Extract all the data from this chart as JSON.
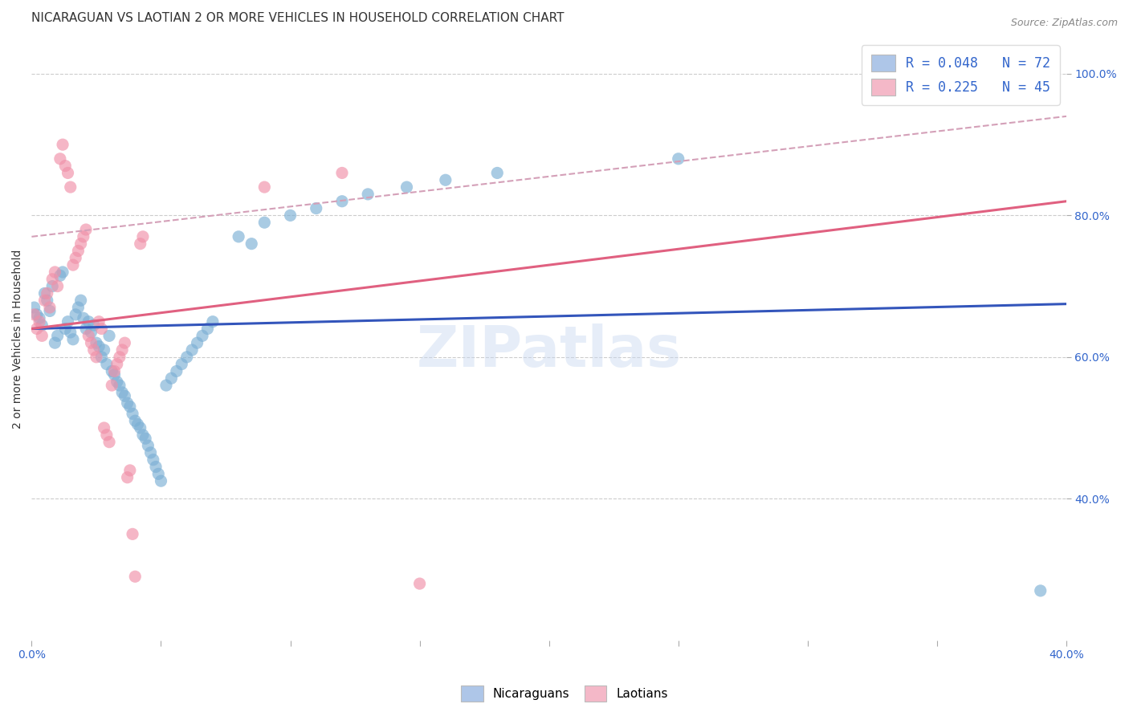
{
  "title": "NICARAGUAN VS LAOTIAN 2 OR MORE VEHICLES IN HOUSEHOLD CORRELATION CHART",
  "source": "Source: ZipAtlas.com",
  "ylabel": "2 or more Vehicles in Household",
  "yticks": [
    "40.0%",
    "60.0%",
    "80.0%",
    "100.0%"
  ],
  "ytick_vals": [
    0.4,
    0.6,
    0.8,
    1.0
  ],
  "legend_entries": [
    {
      "label": "R = 0.048   N = 72",
      "color": "#aec6e8"
    },
    {
      "label": "R = 0.225   N = 45",
      "color": "#f4b8c8"
    }
  ],
  "legend_r_color": "#3366cc",
  "watermark": "ZIPatlas",
  "blue_color": "#7bafd4",
  "pink_color": "#f090a8",
  "blue_line_color": "#3355bb",
  "pink_line_color": "#e06080",
  "pink_dashed_color": "#d4a0b8",
  "nicaraguan_scatter": [
    [
      0.001,
      0.67
    ],
    [
      0.002,
      0.66
    ],
    [
      0.003,
      0.655
    ],
    [
      0.004,
      0.645
    ],
    [
      0.005,
      0.69
    ],
    [
      0.006,
      0.68
    ],
    [
      0.007,
      0.665
    ],
    [
      0.008,
      0.7
    ],
    [
      0.009,
      0.62
    ],
    [
      0.01,
      0.63
    ],
    [
      0.011,
      0.715
    ],
    [
      0.012,
      0.72
    ],
    [
      0.013,
      0.64
    ],
    [
      0.014,
      0.65
    ],
    [
      0.015,
      0.635
    ],
    [
      0.016,
      0.625
    ],
    [
      0.017,
      0.66
    ],
    [
      0.018,
      0.67
    ],
    [
      0.019,
      0.68
    ],
    [
      0.02,
      0.655
    ],
    [
      0.021,
      0.64
    ],
    [
      0.022,
      0.65
    ],
    [
      0.023,
      0.635
    ],
    [
      0.024,
      0.645
    ],
    [
      0.025,
      0.62
    ],
    [
      0.026,
      0.615
    ],
    [
      0.027,
      0.6
    ],
    [
      0.028,
      0.61
    ],
    [
      0.029,
      0.59
    ],
    [
      0.03,
      0.63
    ],
    [
      0.031,
      0.58
    ],
    [
      0.032,
      0.575
    ],
    [
      0.033,
      0.565
    ],
    [
      0.034,
      0.56
    ],
    [
      0.035,
      0.55
    ],
    [
      0.036,
      0.545
    ],
    [
      0.037,
      0.535
    ],
    [
      0.038,
      0.53
    ],
    [
      0.039,
      0.52
    ],
    [
      0.04,
      0.51
    ],
    [
      0.041,
      0.505
    ],
    [
      0.042,
      0.5
    ],
    [
      0.043,
      0.49
    ],
    [
      0.044,
      0.485
    ],
    [
      0.045,
      0.475
    ],
    [
      0.046,
      0.465
    ],
    [
      0.047,
      0.455
    ],
    [
      0.048,
      0.445
    ],
    [
      0.049,
      0.435
    ],
    [
      0.05,
      0.425
    ],
    [
      0.052,
      0.56
    ],
    [
      0.054,
      0.57
    ],
    [
      0.056,
      0.58
    ],
    [
      0.058,
      0.59
    ],
    [
      0.06,
      0.6
    ],
    [
      0.062,
      0.61
    ],
    [
      0.064,
      0.62
    ],
    [
      0.066,
      0.63
    ],
    [
      0.068,
      0.64
    ],
    [
      0.07,
      0.65
    ],
    [
      0.08,
      0.77
    ],
    [
      0.085,
      0.76
    ],
    [
      0.09,
      0.79
    ],
    [
      0.1,
      0.8
    ],
    [
      0.11,
      0.81
    ],
    [
      0.12,
      0.82
    ],
    [
      0.13,
      0.83
    ],
    [
      0.145,
      0.84
    ],
    [
      0.16,
      0.85
    ],
    [
      0.18,
      0.86
    ],
    [
      0.25,
      0.88
    ],
    [
      0.39,
      0.27
    ]
  ],
  "laotian_scatter": [
    [
      0.001,
      0.66
    ],
    [
      0.002,
      0.64
    ],
    [
      0.003,
      0.65
    ],
    [
      0.004,
      0.63
    ],
    [
      0.005,
      0.68
    ],
    [
      0.006,
      0.69
    ],
    [
      0.007,
      0.67
    ],
    [
      0.008,
      0.71
    ],
    [
      0.009,
      0.72
    ],
    [
      0.01,
      0.7
    ],
    [
      0.011,
      0.88
    ],
    [
      0.012,
      0.9
    ],
    [
      0.013,
      0.87
    ],
    [
      0.014,
      0.86
    ],
    [
      0.015,
      0.84
    ],
    [
      0.016,
      0.73
    ],
    [
      0.017,
      0.74
    ],
    [
      0.018,
      0.75
    ],
    [
      0.019,
      0.76
    ],
    [
      0.02,
      0.77
    ],
    [
      0.021,
      0.78
    ],
    [
      0.022,
      0.63
    ],
    [
      0.023,
      0.62
    ],
    [
      0.024,
      0.61
    ],
    [
      0.025,
      0.6
    ],
    [
      0.026,
      0.65
    ],
    [
      0.027,
      0.64
    ],
    [
      0.028,
      0.5
    ],
    [
      0.029,
      0.49
    ],
    [
      0.03,
      0.48
    ],
    [
      0.031,
      0.56
    ],
    [
      0.032,
      0.58
    ],
    [
      0.033,
      0.59
    ],
    [
      0.034,
      0.6
    ],
    [
      0.035,
      0.61
    ],
    [
      0.036,
      0.62
    ],
    [
      0.037,
      0.43
    ],
    [
      0.038,
      0.44
    ],
    [
      0.039,
      0.35
    ],
    [
      0.04,
      0.29
    ],
    [
      0.042,
      0.76
    ],
    [
      0.043,
      0.77
    ],
    [
      0.09,
      0.84
    ],
    [
      0.12,
      0.86
    ],
    [
      0.15,
      0.28
    ]
  ],
  "xlim": [
    0.0,
    0.4
  ],
  "ylim": [
    0.2,
    1.05
  ],
  "blue_line": {
    "x0": 0.0,
    "y0": 0.64,
    "x1": 0.4,
    "y1": 0.675
  },
  "pink_line": {
    "x0": 0.0,
    "y0": 0.64,
    "x1": 0.4,
    "y1": 0.82
  },
  "pink_dash_line": {
    "x0": 0.0,
    "y0": 0.77,
    "x1": 0.4,
    "y1": 0.94
  },
  "grid_color": "#cccccc",
  "background_color": "#ffffff",
  "title_fontsize": 11,
  "source_fontsize": 9,
  "axis_label_fontsize": 10,
  "tick_fontsize": 10,
  "watermark_fontsize": 52,
  "watermark_color": "#c8d8f0",
  "watermark_alpha": 0.45
}
